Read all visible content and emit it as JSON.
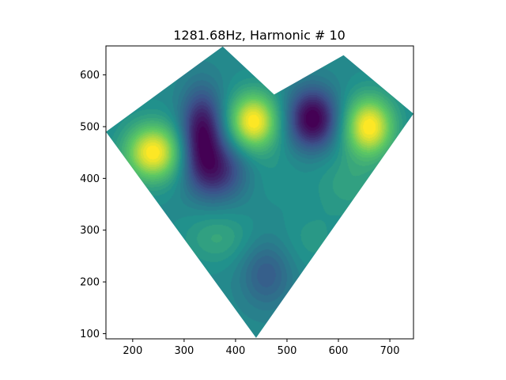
{
  "chart_data": {
    "type": "heatmap",
    "title": "1281.68Hz, Harmonic # 10",
    "xlabel": "",
    "ylabel": "",
    "xlim": [
      148,
      746
    ],
    "ylim": [
      90,
      656
    ],
    "x_ticks": [
      200,
      300,
      400,
      500,
      600,
      700
    ],
    "y_ticks": [
      100,
      200,
      300,
      400,
      500,
      600
    ],
    "x_tick_labels": [
      "200",
      "300",
      "400",
      "500",
      "600",
      "700"
    ],
    "y_tick_labels": [
      "100",
      "200",
      "300",
      "400",
      "500",
      "600"
    ],
    "grid": false,
    "colormap": "viridis",
    "colormap_stops": [
      "#440154",
      "#3b528b",
      "#21918c",
      "#5ec962",
      "#fde725"
    ],
    "domain_outline": [
      [
        148,
        490
      ],
      [
        375,
        655
      ],
      [
        475,
        562
      ],
      [
        610,
        638
      ],
      [
        746,
        525
      ],
      [
        440,
        92
      ]
    ],
    "field_background_value": 0.47,
    "field_blobs": [
      {
        "x": 240,
        "y": 450,
        "sx": 38,
        "sy": 38,
        "amp": 0.55
      },
      {
        "x": 335,
        "y": 490,
        "sx": 28,
        "sy": 55,
        "amp": -0.45
      },
      {
        "x": 365,
        "y": 415,
        "sx": 40,
        "sy": 40,
        "amp": -0.32
      },
      {
        "x": 435,
        "y": 510,
        "sx": 33,
        "sy": 38,
        "amp": 0.55
      },
      {
        "x": 550,
        "y": 515,
        "sx": 33,
        "sy": 40,
        "amp": -0.5
      },
      {
        "x": 660,
        "y": 500,
        "sx": 33,
        "sy": 40,
        "amp": 0.55
      },
      {
        "x": 365,
        "y": 285,
        "sx": 45,
        "sy": 35,
        "amp": 0.12
      },
      {
        "x": 460,
        "y": 215,
        "sx": 35,
        "sy": 45,
        "amp": -0.18
      },
      {
        "x": 545,
        "y": 280,
        "sx": 40,
        "sy": 40,
        "amp": 0.06
      },
      {
        "x": 620,
        "y": 390,
        "sx": 45,
        "sy": 45,
        "amp": 0.1
      },
      {
        "x": 470,
        "y": 410,
        "sx": 45,
        "sy": 40,
        "amp": 0.04
      }
    ]
  }
}
